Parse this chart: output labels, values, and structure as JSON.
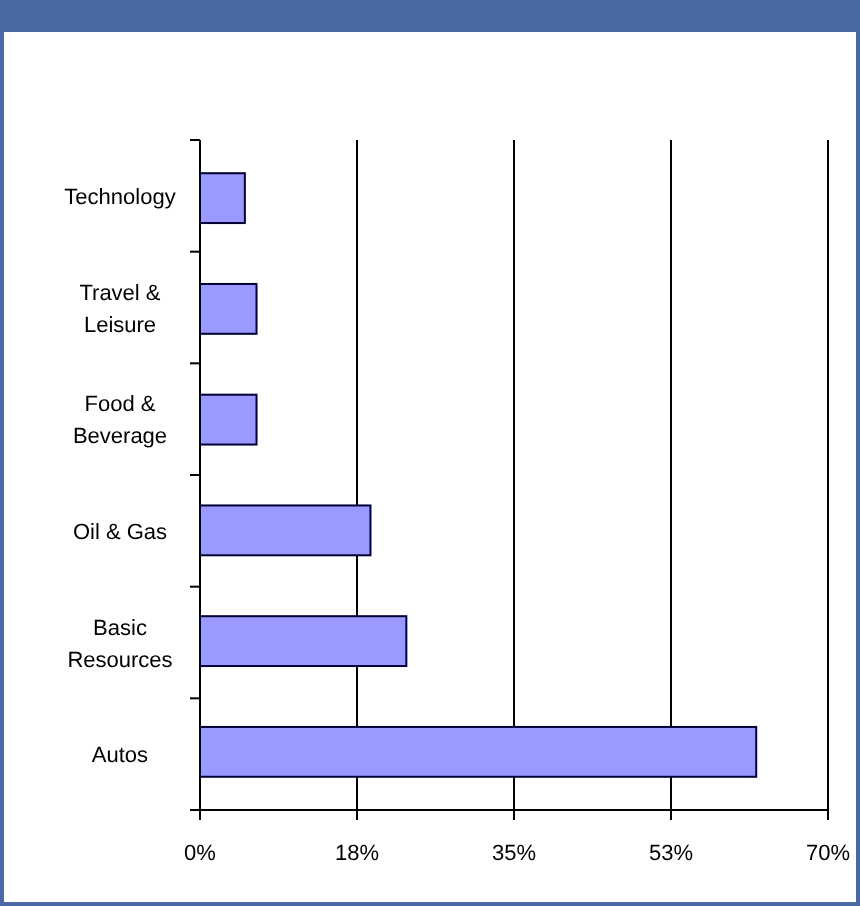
{
  "chart_data": {
    "type": "bar",
    "orientation": "horizontal",
    "categories": [
      "Technology",
      "Travel & Leisure",
      "Food & Beverage",
      "Oil & Gas",
      "Basic Resources",
      "Autos"
    ],
    "values": [
      5,
      6.3,
      6.3,
      19,
      23,
      62
    ],
    "color": "#9999ff",
    "xlim": [
      0,
      70
    ],
    "xticks": [
      {
        "value": 0,
        "label": "0%"
      },
      {
        "value": 17.5,
        "label": "18%"
      },
      {
        "value": 35,
        "label": "35%"
      },
      {
        "value": 52.5,
        "label": "53%"
      },
      {
        "value": 70,
        "label": "70%"
      }
    ],
    "grid": "x"
  }
}
